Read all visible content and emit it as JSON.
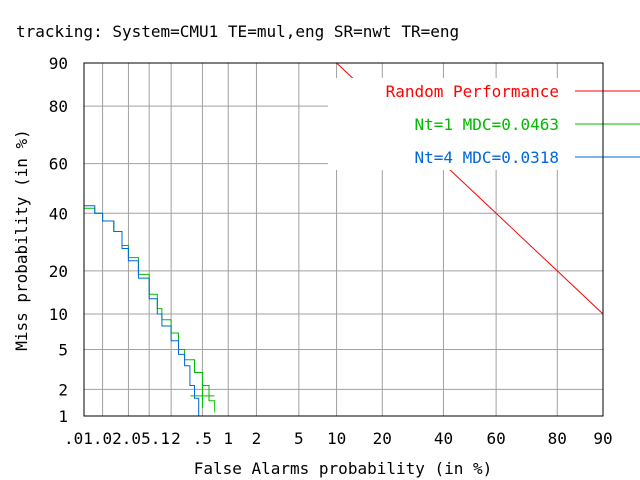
{
  "chart_data": {
    "type": "line",
    "title": "tracking: System=CMU1 TE=mul,eng SR=nwt TR=eng",
    "xlabel": "False Alarms probability (in %)",
    "ylabel": "Miss probability (in %)",
    "x_scale": "normal-deviate",
    "y_scale": "normal-deviate",
    "xlim": [
      0.01,
      90
    ],
    "ylim": [
      1,
      90
    ],
    "x_ticks": [
      ".01",
      ".02",
      ".05",
      ".1",
      ".2",
      ".5",
      "1",
      "2",
      "5",
      "10",
      "20",
      "40",
      "60",
      "80",
      "90"
    ],
    "x_tick_values": [
      0.01,
      0.02,
      0.05,
      0.1,
      0.2,
      0.5,
      1,
      2,
      5,
      10,
      20,
      40,
      60,
      80,
      90
    ],
    "x_tick_text": [
      ".01",
      "",
      "",
      "",
      ".2",
      ".5",
      "1",
      "2",
      "5",
      "10",
      "20",
      "40",
      "60",
      "80",
      "90"
    ],
    "x_tick_crowded_text": ".01.02.05.1",
    "y_ticks": [
      "1",
      "2",
      "5",
      "10",
      "20",
      "40",
      "60",
      "80",
      "90"
    ],
    "y_tick_values": [
      1,
      2,
      5,
      10,
      20,
      40,
      60,
      80,
      90
    ],
    "grid": true,
    "legend_position": "top-right",
    "series": [
      {
        "name": "Random Performance",
        "color": "#ff0000",
        "x": [
          10,
          20,
          40,
          60,
          80,
          90
        ],
        "y": [
          90,
          80,
          60,
          40,
          20,
          10
        ]
      },
      {
        "name": "Nt=1 MDC=0.0463",
        "color": "#00bb00",
        "x": [
          0.01,
          0.015,
          0.02,
          0.03,
          0.04,
          0.05,
          0.07,
          0.1,
          0.13,
          0.15,
          0.2,
          0.25,
          0.3,
          0.4,
          0.5,
          0.6,
          0.7
        ],
        "y": [
          42,
          40,
          37,
          33,
          28,
          24,
          19,
          14,
          11,
          9,
          7,
          5,
          4,
          3,
          2.2,
          1.5,
          1.1
        ]
      },
      {
        "name": "Nt=4 MDC=0.0318",
        "color": "#0066dd",
        "x": [
          0.01,
          0.015,
          0.02,
          0.03,
          0.04,
          0.05,
          0.07,
          0.1,
          0.13,
          0.15,
          0.2,
          0.25,
          0.3,
          0.35,
          0.4,
          0.45
        ],
        "y": [
          43,
          40,
          37,
          33,
          27,
          23,
          18,
          13,
          10,
          8,
          6,
          4.5,
          3.5,
          2.2,
          1.6,
          1.0
        ]
      }
    ],
    "marker": {
      "label": "",
      "x": 0.5,
      "y": 1.7,
      "color": "#00bb00"
    }
  }
}
